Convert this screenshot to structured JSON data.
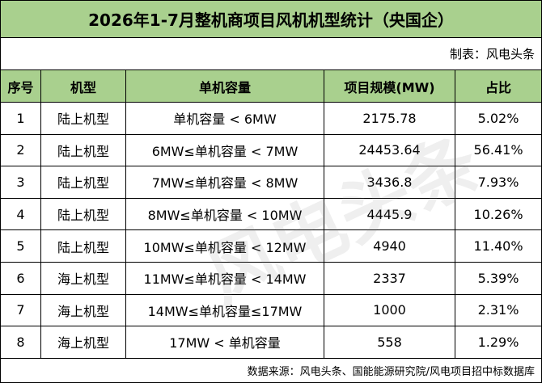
{
  "title": "2026年1-7月整机商项目风机机型统计（央国企）",
  "maker": "制表：风电头条",
  "table": {
    "headers": [
      "序号",
      "机型",
      "单机容量",
      "项目规模(MW)",
      "占比"
    ],
    "rows": [
      [
        "1",
        "陆上机型",
        "单机容量 < 6MW",
        "2175.78",
        "5.02%"
      ],
      [
        "2",
        "陆上机型",
        "6MW≤单机容量 < 7MW",
        "24453.64",
        "56.41%"
      ],
      [
        "3",
        "陆上机型",
        "7MW≤单机容量 < 8MW",
        "3436.8",
        "7.93%"
      ],
      [
        "4",
        "陆上机型",
        "8MW≤单机容量 < 10MW",
        "4445.9",
        "10.26%"
      ],
      [
        "5",
        "陆上机型",
        "10MW≤单机容量 < 12MW",
        "4940",
        "11.40%"
      ],
      [
        "6",
        "海上机型",
        "11MW≤单机容量 < 14MW",
        "2337",
        "5.39%"
      ],
      [
        "7",
        "海上机型",
        "14MW≤单机容量≤17MW",
        "1000",
        "2.31%"
      ],
      [
        "8",
        "海上机型",
        "17MW < 单机容量",
        "558",
        "1.29%"
      ]
    ]
  },
  "source": "数据来源：风电头条、国能能源研究院/风电项目招中标数据库",
  "watermark": "风电头条"
}
